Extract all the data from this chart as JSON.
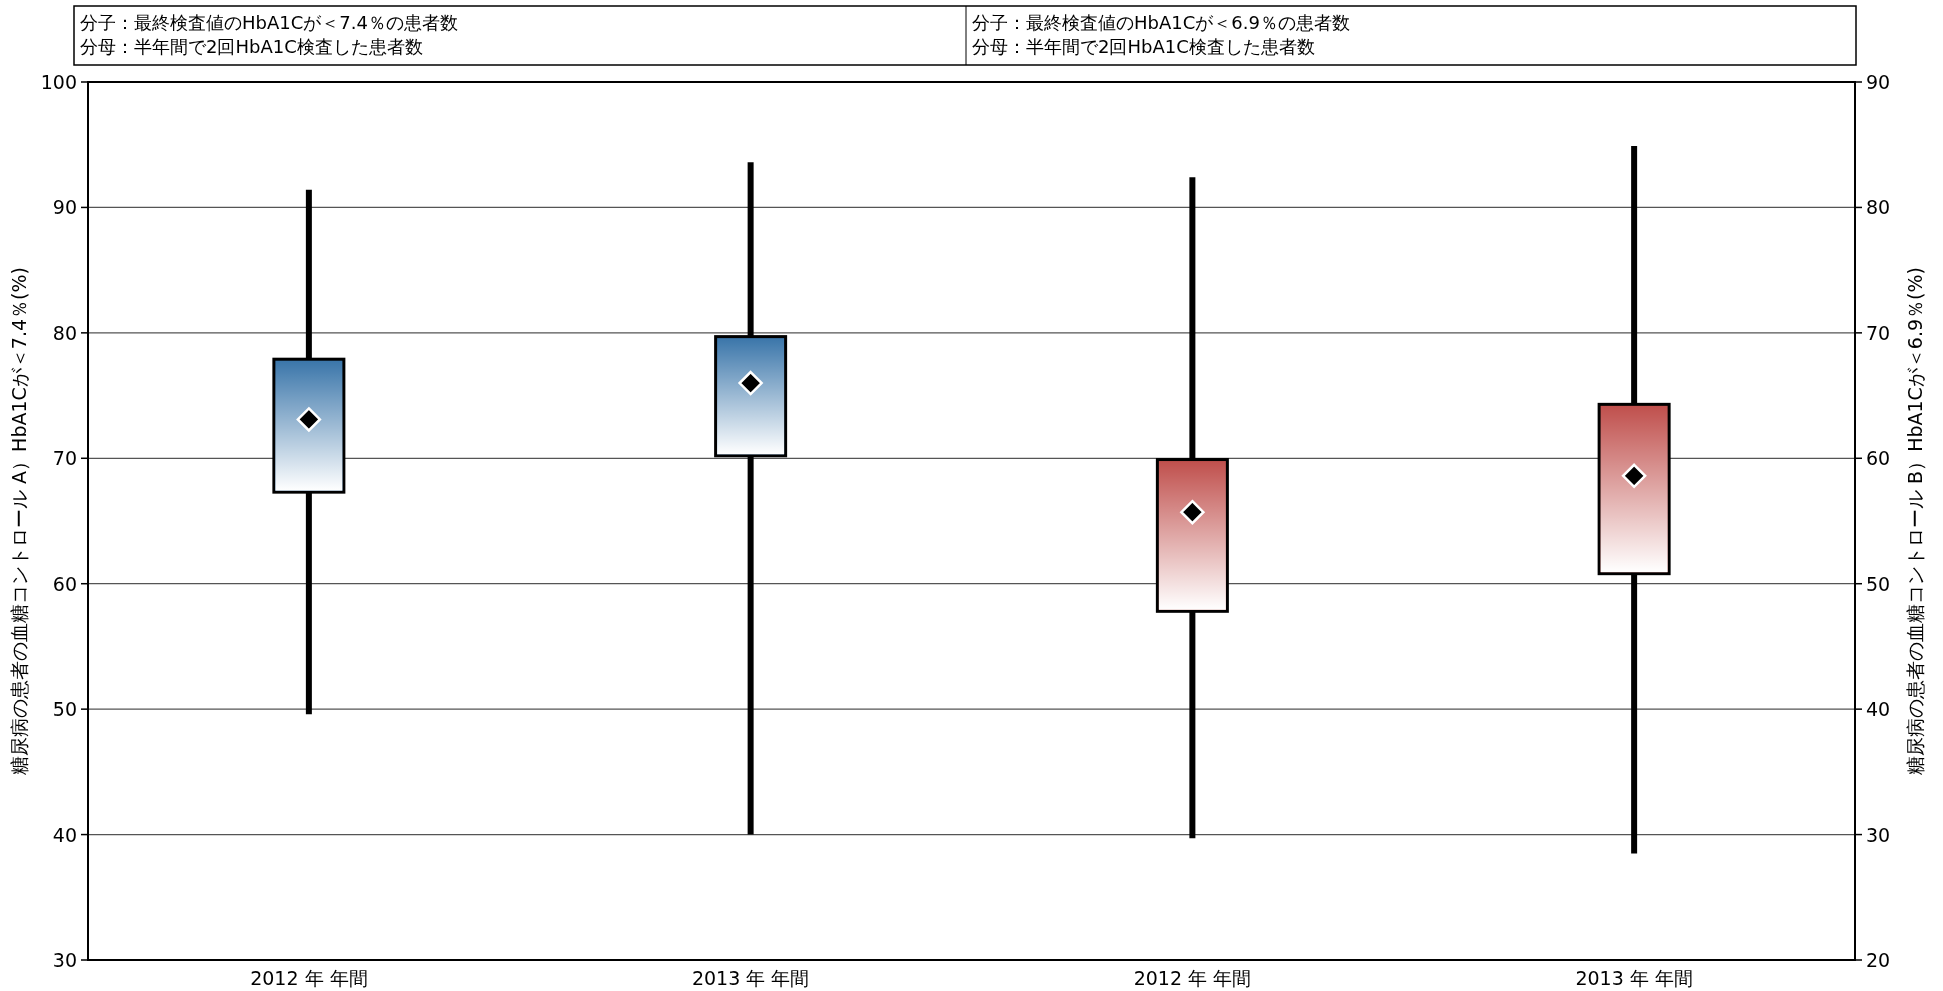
{
  "chart_data": {
    "type": "box",
    "categories": [
      "2012 年  年間",
      "2013 年  年間",
      "2012 年  年間",
      "2013 年  年間"
    ],
    "ylabel": "糖尿病の患者の血糖コントロール A）HbA1Cが＜7.4％(%)",
    "y2label": "糖尿病の患者の血糖コントロール B）HbA1Cが＜6.9％(%)",
    "ylim": [
      30,
      100
    ],
    "yticks": [
      30,
      40,
      50,
      60,
      70,
      80,
      90,
      100
    ],
    "y2lim": [
      20,
      90
    ],
    "y2ticks": [
      20,
      30,
      40,
      50,
      60,
      70,
      80,
      90
    ],
    "grid": "y",
    "marker": "diamond",
    "annotations": [
      "分子：最終検査値のHbA1Cが＜7.4％の患者数",
      "分母：半年間で2回HbA1C検査した患者数",
      "分子：最終検査値のHbA1Cが＜6.9％の患者数",
      "分母：半年間で2回HbA1C検査した患者数"
    ],
    "series": [
      {
        "color": "#3b76aa",
        "axis": "y",
        "boxes": [
          {
            "low": 49.6,
            "q1": 67.3,
            "q3": 77.9,
            "high": 91.4,
            "mean": 73.1
          },
          {
            "low": 40.0,
            "q1": 70.2,
            "q3": 79.7,
            "high": 93.6,
            "mean": 76.0
          },
          null,
          null
        ]
      },
      {
        "color": "#c0504d",
        "axis": "y2",
        "boxes": [
          null,
          null,
          {
            "low": 29.7,
            "q1": 47.8,
            "q3": 59.9,
            "high": 82.4,
            "mean": 55.7
          },
          {
            "low": 28.5,
            "q1": 50.8,
            "q3": 64.3,
            "high": 84.9,
            "mean": 58.6
          }
        ]
      }
    ]
  }
}
